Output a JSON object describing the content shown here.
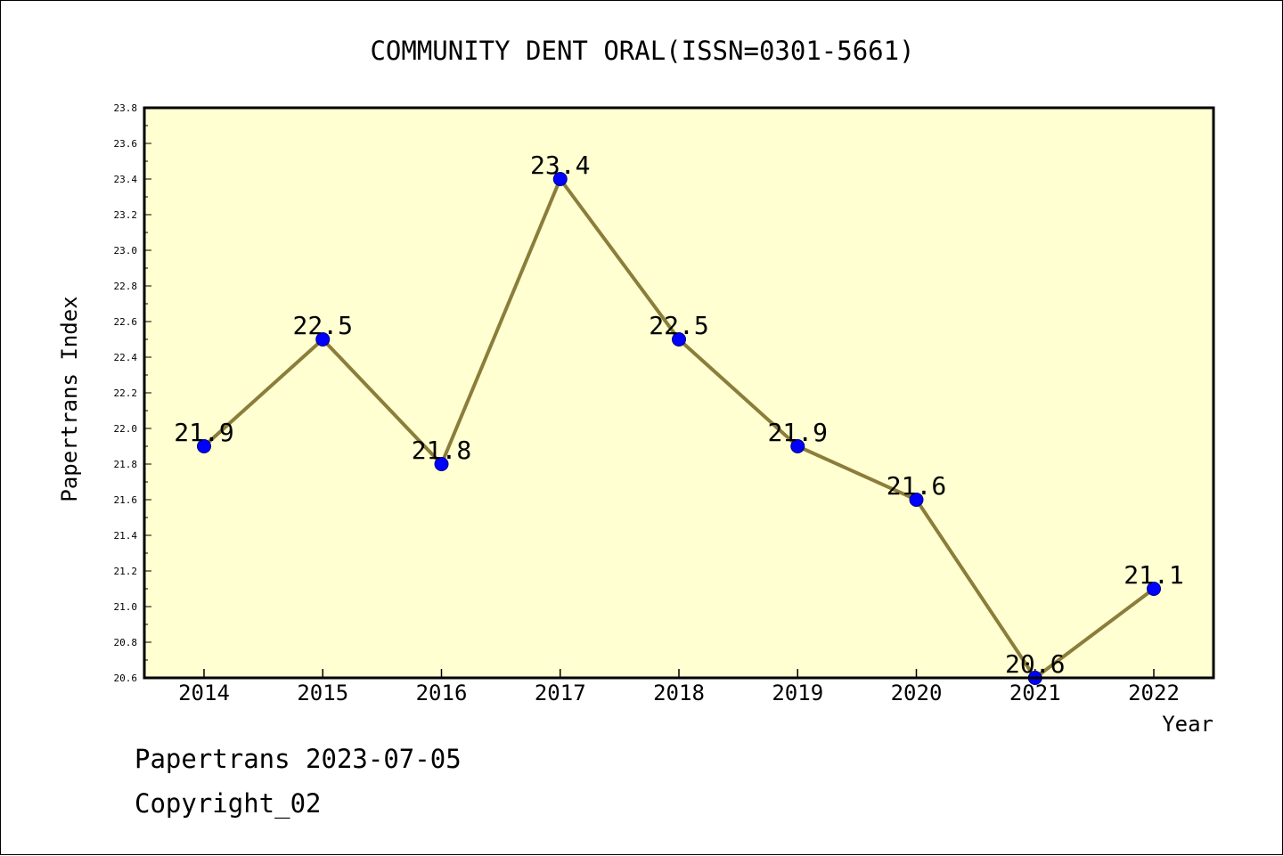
{
  "chart_data": {
    "type": "line",
    "title": "COMMUNITY DENT ORAL(ISSN=0301-5661)",
    "xlabel": "Year",
    "ylabel": "Papertrans Index",
    "x": [
      "2014",
      "2015",
      "2016",
      "2017",
      "2018",
      "2019",
      "2020",
      "2021",
      "2022"
    ],
    "values": [
      21.9,
      22.5,
      21.8,
      23.4,
      22.5,
      21.9,
      21.6,
      20.6,
      21.1
    ],
    "data_labels": [
      "21.9",
      "22.5",
      "21.8",
      "23.4",
      "22.5",
      "21.9",
      "21.6",
      "20.6",
      "21.1"
    ],
    "ylim": [
      20.6,
      23.8
    ],
    "yticks": [
      "20.6",
      "20.8",
      "21.0",
      "21.2",
      "21.4",
      "21.6",
      "21.8",
      "22.0",
      "22.2",
      "22.4",
      "22.6",
      "22.8",
      "23.0",
      "23.2",
      "23.4",
      "23.6",
      "23.8"
    ],
    "grid": false,
    "legend": "none",
    "colors": {
      "plot_background": "#ffffd2",
      "line": "#8b7d3a",
      "marker": "#0000ff",
      "axis": "#000000"
    }
  },
  "footer": {
    "source": "Papertrans 2023-07-05",
    "copyright": "Copyright_02"
  }
}
